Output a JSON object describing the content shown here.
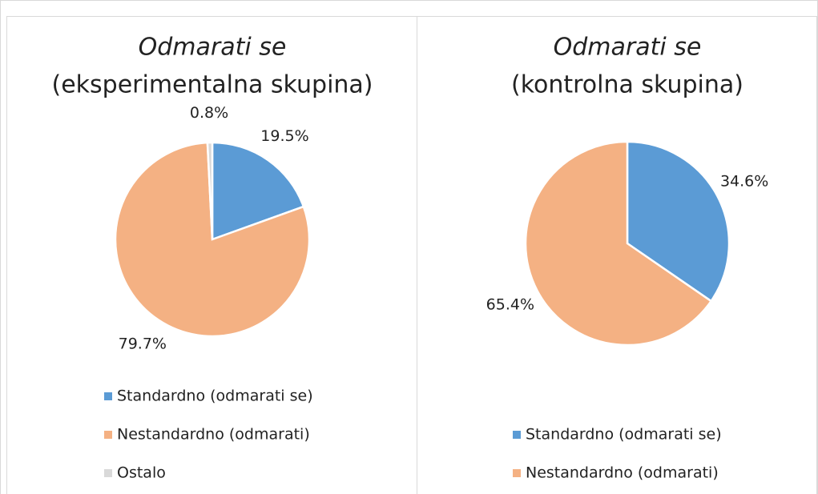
{
  "chart_data": [
    {
      "type": "pie",
      "title": "Odmarati se",
      "subtitle": "(eksperimentalna skupina)",
      "categories": [
        "Standardno (odmarati se)",
        "Nestandardno (odmarati)",
        "Ostalo"
      ],
      "values": [
        19.5,
        79.7,
        0.8
      ],
      "value_labels": [
        "19.5%",
        "79.7%",
        "0.8%"
      ],
      "colors": [
        "#5b9bd5",
        "#f4b183",
        "#d9d9d9"
      ]
    },
    {
      "type": "pie",
      "title": "Odmarati se",
      "subtitle": "(kontrolna skupina)",
      "categories": [
        "Standardno (odmarati se)",
        "Nestandardno (odmarati)"
      ],
      "values": [
        34.6,
        65.4
      ],
      "value_labels": [
        "34.6%",
        "65.4%"
      ],
      "colors": [
        "#5b9bd5",
        "#f4b183"
      ]
    }
  ]
}
